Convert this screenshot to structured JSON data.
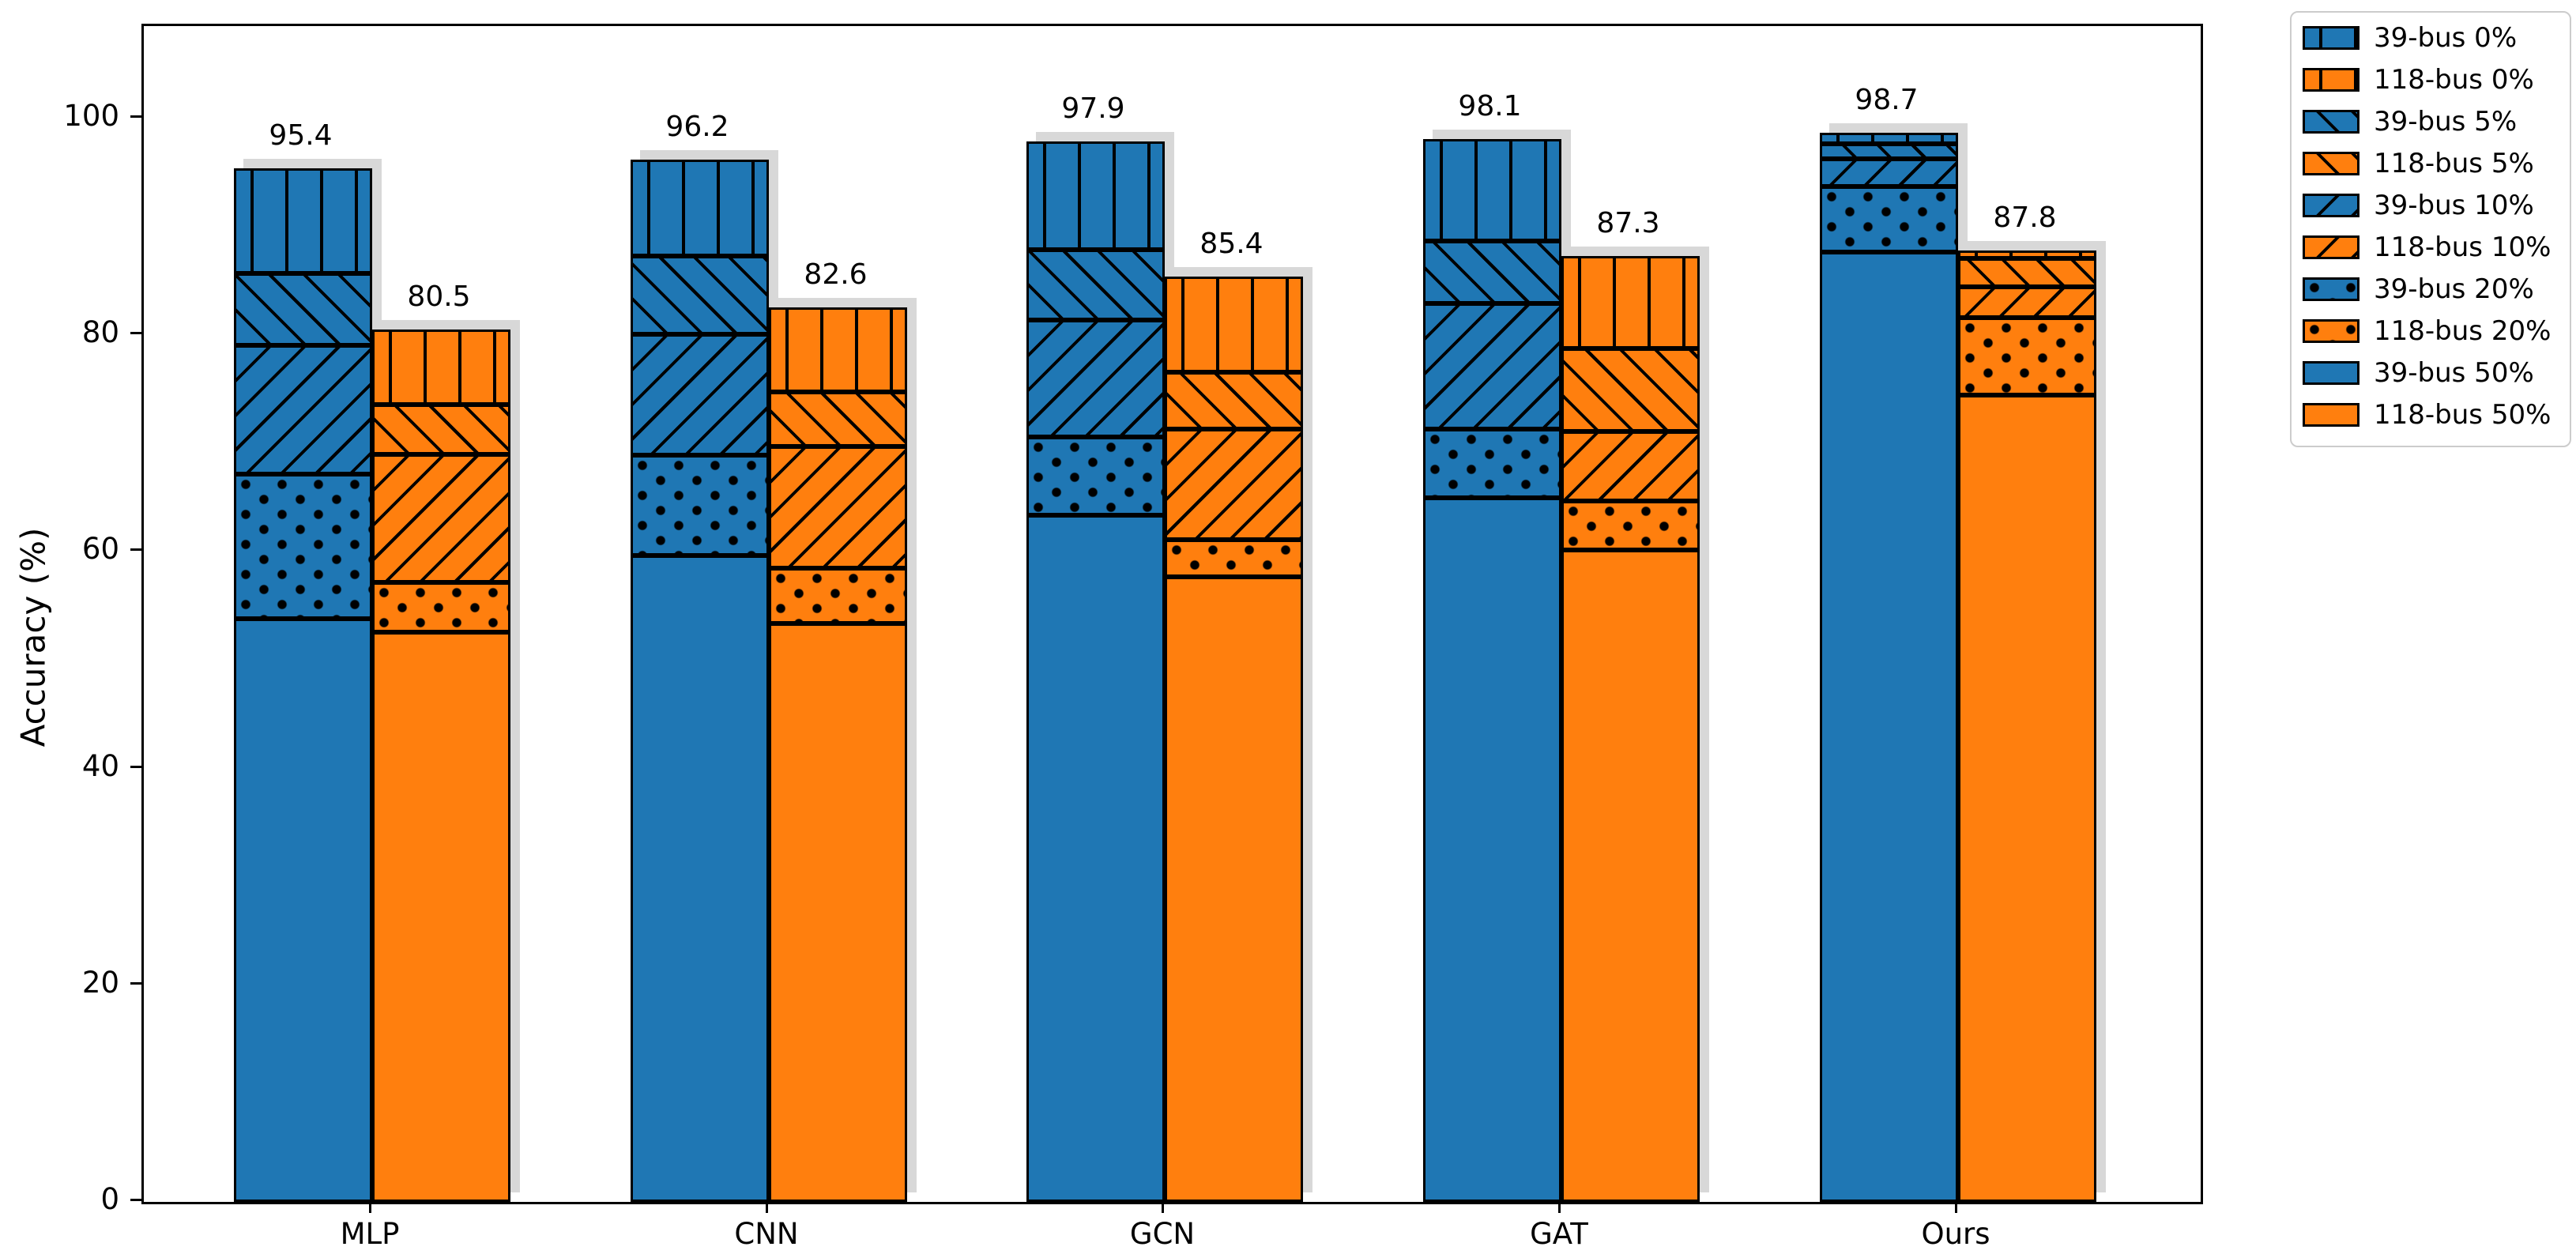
{
  "chart_data": {
    "type": "bar",
    "title": "",
    "ylabel": "Accuracy (%)",
    "xlabel": "",
    "ylim": [
      0,
      108.5
    ],
    "yticks": [
      0,
      20,
      40,
      60,
      80,
      100
    ],
    "categories": [
      "MLP",
      "CNN",
      "GCN",
      "GAT",
      "Ours"
    ],
    "groups": [
      "39-bus",
      "118-bus"
    ],
    "noise_levels": [
      "0%",
      "5%",
      "10%",
      "20%",
      "50%"
    ],
    "grid": false,
    "legend_position": "upper-right-outside",
    "bar_style": "overlaid-per-noise-level (0% tallest behind, 50% shortest in front; visible bands show each noise level)",
    "series": [
      {
        "name": "39-bus 0%",
        "bus": "39-bus",
        "noise": "0%",
        "color": "#1f77b4",
        "hatch": "vertical",
        "values": [
          95.4,
          96.2,
          97.9,
          98.1,
          98.7
        ]
      },
      {
        "name": "118-bus 0%",
        "bus": "118-bus",
        "noise": "0%",
        "color": "#ff7f0e",
        "hatch": "vertical",
        "values": [
          80.5,
          82.6,
          85.4,
          87.3,
          87.8
        ]
      },
      {
        "name": "39-bus 5%",
        "bus": "39-bus",
        "noise": "5%",
        "color": "#1f77b4",
        "hatch": "slash",
        "values": [
          85.7,
          87.3,
          87.9,
          88.7,
          97.7
        ]
      },
      {
        "name": "118-bus 5%",
        "bus": "118-bus",
        "noise": "5%",
        "color": "#ff7f0e",
        "hatch": "slash",
        "values": [
          73.6,
          74.8,
          76.6,
          78.8,
          87.1
        ]
      },
      {
        "name": "39-bus 10%",
        "bus": "39-bus",
        "noise": "10%",
        "color": "#1f77b4",
        "hatch": "backslash",
        "values": [
          79.1,
          80.1,
          81.4,
          82.9,
          96.3
        ]
      },
      {
        "name": "118-bus 10%",
        "bus": "118-bus",
        "noise": "10%",
        "color": "#ff7f0e",
        "hatch": "backslash",
        "values": [
          69.0,
          69.7,
          71.3,
          71.1,
          84.5
        ]
      },
      {
        "name": "39-bus 20%",
        "bus": "39-bus",
        "noise": "20%",
        "color": "#1f77b4",
        "hatch": "dots",
        "values": [
          67.2,
          68.9,
          70.6,
          71.3,
          93.7
        ]
      },
      {
        "name": "118-bus 20%",
        "bus": "118-bus",
        "noise": "20%",
        "color": "#ff7f0e",
        "hatch": "dots",
        "values": [
          57.2,
          58.5,
          61.1,
          64.7,
          81.6
        ]
      },
      {
        "name": "39-bus 50%",
        "bus": "39-bus",
        "noise": "50%",
        "color": "#1f77b4",
        "hatch": "solid",
        "values": [
          53.8,
          59.7,
          63.4,
          65.0,
          87.7
        ]
      },
      {
        "name": "118-bus 50%",
        "bus": "118-bus",
        "noise": "50%",
        "color": "#ff7f0e",
        "hatch": "solid",
        "values": [
          52.6,
          53.4,
          57.7,
          60.2,
          74.5
        ]
      }
    ],
    "bar_top_labels": {
      "39-bus": [
        "95.4",
        "96.2",
        "97.9",
        "98.1",
        "98.7"
      ],
      "118-bus": [
        "80.5",
        "82.6",
        "85.4",
        "87.3",
        "87.8"
      ]
    },
    "colors": {
      "39-bus": "#1f77b4",
      "118-bus": "#ff7f0e",
      "bar_edge": "#000000",
      "bar_shadow": "#d8d8d8",
      "legend_border": "#cccccc",
      "text": "#000000"
    }
  }
}
